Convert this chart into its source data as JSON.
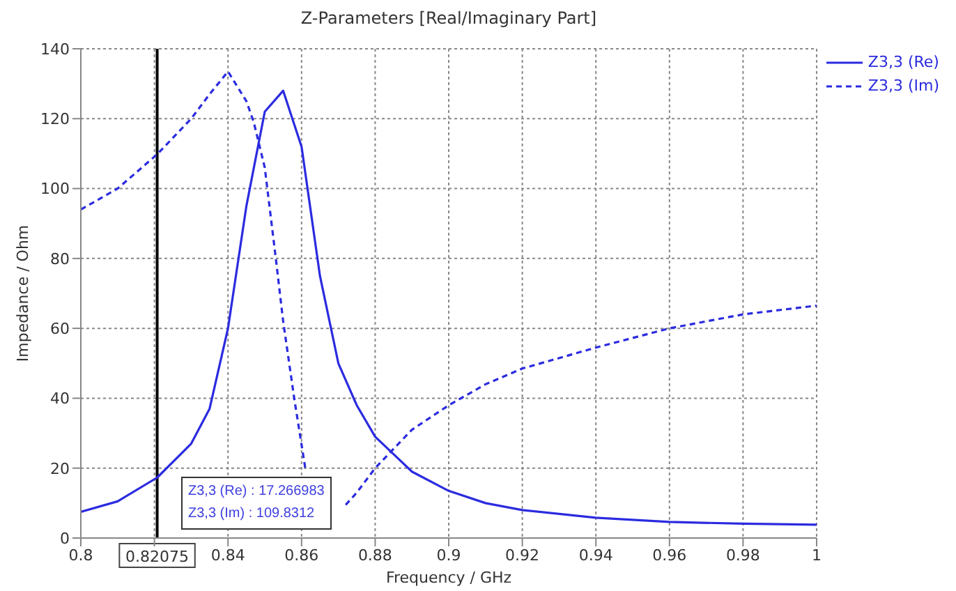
{
  "chart_data": {
    "type": "line",
    "title": "Z-Parameters [Real/Imaginary Part]",
    "xlabel": "Frequency / GHz",
    "ylabel": "Impedance / Ohm",
    "xlim": [
      0.8,
      1
    ],
    "xticks": [
      0.8,
      {
        "value": 0.82,
        "label": null
      },
      0.84,
      0.86,
      0.88,
      0.9,
      0.92,
      0.94,
      0.96,
      0.98,
      1
    ],
    "ylim": [
      0,
      140
    ],
    "yticks": [
      0,
      20,
      40,
      60,
      80,
      100,
      120,
      140
    ],
    "grid": true,
    "legend": "top right",
    "marker": "none",
    "ref_lines": [
      {
        "axis": "x",
        "value": 0.82075,
        "label": "0.82075",
        "color": "#000000"
      }
    ],
    "annotations": [
      "Z3,3 (Re) : 17.266983",
      "Z3,3 (Im) : 109.8312"
    ],
    "series": [
      {
        "name": "Z3,3 (Re)",
        "color": "#2b2be0",
        "line_style": "solid",
        "x": [
          0.8,
          0.81,
          0.82075,
          0.83,
          0.835,
          0.84,
          0.845,
          0.85,
          0.855,
          0.86,
          0.865,
          0.87,
          0.875,
          0.88,
          0.885,
          0.89,
          0.9,
          0.91,
          0.92,
          0.94,
          0.96,
          0.98,
          1
        ],
        "values": [
          7.5,
          10.5,
          17.3,
          27,
          37,
          60,
          95,
          122,
          128,
          112,
          75,
          50,
          38,
          29,
          24,
          19,
          13.5,
          10,
          8,
          5.8,
          4.6,
          4.1,
          3.8
        ]
      },
      {
        "name": "Z3,3 (Im)",
        "color": "#2b2be0",
        "line_style": "dashed",
        "x": [
          0.8,
          0.81,
          0.82075,
          0.83,
          0.835,
          0.84,
          0.845,
          0.847,
          0.85,
          0.853,
          0.855,
          0.858,
          0.861,
          0.865,
          0.872,
          0.875,
          0.88,
          0.89,
          0.9,
          0.91,
          0.92,
          0.94,
          0.96,
          0.98,
          1
        ],
        "values": [
          94,
          100,
          109.8,
          120,
          127,
          133.5,
          125,
          119,
          106,
          80,
          62,
          40,
          20,
          null,
          9.5,
          13,
          20,
          31,
          38,
          44,
          48.5,
          54.5,
          60,
          64,
          66.5
        ]
      }
    ]
  }
}
